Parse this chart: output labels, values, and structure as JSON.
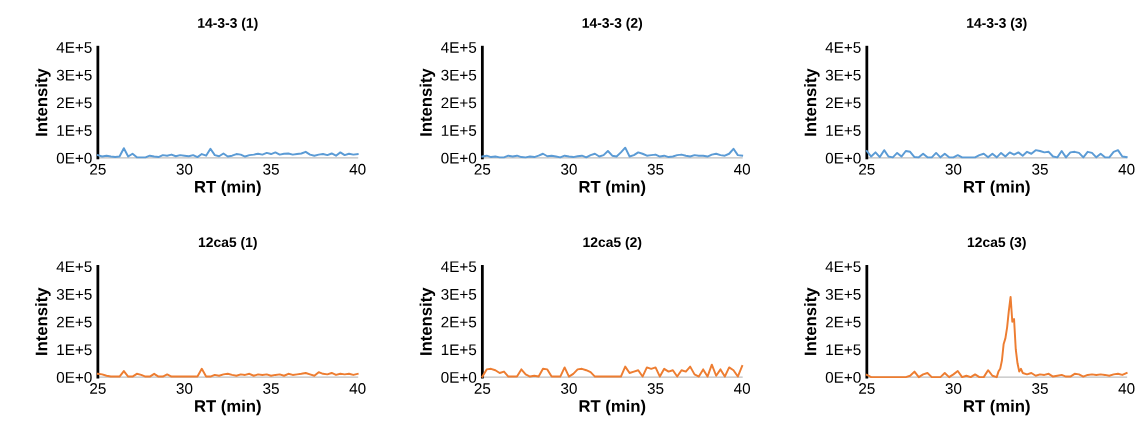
{
  "chart_data": [
    {
      "type": "line",
      "title": "14-3-3 (1)",
      "xlabel": "RT (min)",
      "ylabel": "Intensity",
      "xlim": [
        25,
        40
      ],
      "ylim": [
        0,
        400000
      ],
      "xticks": [
        25,
        30,
        35,
        40
      ],
      "yticks": [
        {
          "value": 0,
          "label": "0E+0"
        },
        {
          "value": 100000,
          "label": "1E+5"
        },
        {
          "value": 200000,
          "label": "2E+5"
        },
        {
          "value": 300000,
          "label": "3E+5"
        },
        {
          "value": 400000,
          "label": "4E+5"
        }
      ],
      "grid": false,
      "x": [
        25,
        25.25,
        25.5,
        25.75,
        26,
        26.25,
        26.5,
        26.75,
        27,
        27.25,
        27.5,
        27.75,
        28,
        28.25,
        28.5,
        28.75,
        29,
        29.25,
        29.5,
        29.75,
        30,
        30.25,
        30.5,
        30.75,
        31,
        31.25,
        31.5,
        31.75,
        32,
        32.25,
        32.5,
        32.75,
        33,
        33.25,
        33.5,
        33.75,
        34,
        34.25,
        34.5,
        34.75,
        35,
        35.25,
        35.5,
        35.75,
        36,
        36.25,
        36.5,
        36.75,
        37,
        37.25,
        37.5,
        37.75,
        38,
        38.25,
        38.5,
        38.75,
        39,
        39.25,
        39.5,
        39.75,
        40
      ],
      "series": [
        {
          "color": "#5b9bd5",
          "values": [
            10000,
            5000,
            8000,
            5000,
            3000,
            5000,
            35000,
            5000,
            15000,
            2000,
            2000,
            2000,
            8000,
            5000,
            3000,
            10000,
            8000,
            12000,
            6000,
            10000,
            8000,
            6000,
            10000,
            3000,
            14000,
            8000,
            33000,
            10000,
            6000,
            16000,
            5000,
            8000,
            14000,
            12000,
            5000,
            10000,
            12000,
            15000,
            12000,
            18000,
            14000,
            20000,
            12000,
            15000,
            16000,
            12000,
            14000,
            16000,
            22000,
            12000,
            8000,
            12000,
            14000,
            10000,
            16000,
            8000,
            20000,
            10000,
            15000,
            12000,
            14000
          ]
        }
      ]
    },
    {
      "type": "line",
      "title": "14-3-3 (2)",
      "xlabel": "RT (min)",
      "ylabel": "Intensity",
      "xlim": [
        25,
        40
      ],
      "ylim": [
        0,
        400000
      ],
      "xticks": [
        25,
        30,
        35,
        40
      ],
      "yticks": [
        {
          "value": 0,
          "label": "0E+0"
        },
        {
          "value": 100000,
          "label": "1E+5"
        },
        {
          "value": 200000,
          "label": "2E+5"
        },
        {
          "value": 300000,
          "label": "3E+5"
        },
        {
          "value": 400000,
          "label": "4E+5"
        }
      ],
      "grid": false,
      "x": [
        25,
        25.25,
        25.5,
        25.75,
        26,
        26.25,
        26.5,
        26.75,
        27,
        27.25,
        27.5,
        27.75,
        28,
        28.25,
        28.5,
        28.75,
        29,
        29.25,
        29.5,
        29.75,
        30,
        30.25,
        30.5,
        30.75,
        31,
        31.25,
        31.5,
        31.75,
        32,
        32.25,
        32.5,
        32.75,
        33,
        33.25,
        33.5,
        33.75,
        34,
        34.25,
        34.5,
        34.75,
        35,
        35.25,
        35.5,
        35.75,
        36,
        36.25,
        36.5,
        36.75,
        37,
        37.25,
        37.5,
        37.75,
        38,
        38.25,
        38.5,
        38.75,
        39,
        39.25,
        39.5,
        39.75,
        40
      ],
      "series": [
        {
          "color": "#5b9bd5",
          "values": [
            5000,
            8000,
            3000,
            5000,
            2000,
            2000,
            8000,
            5000,
            8000,
            3000,
            2000,
            5000,
            3000,
            8000,
            15000,
            6000,
            8000,
            5000,
            2000,
            8000,
            5000,
            3000,
            6000,
            8000,
            2000,
            10000,
            15000,
            5000,
            10000,
            25000,
            8000,
            5000,
            20000,
            37000,
            5000,
            10000,
            20000,
            15000,
            8000,
            10000,
            12000,
            5000,
            8000,
            3000,
            5000,
            10000,
            12000,
            8000,
            5000,
            10000,
            8000,
            8000,
            5000,
            12000,
            15000,
            10000,
            8000,
            15000,
            33000,
            10000,
            8000
          ]
        }
      ]
    },
    {
      "type": "line",
      "title": "14-3-3 (3)",
      "xlabel": "RT (min)",
      "ylabel": "Intensity",
      "xlim": [
        25,
        40
      ],
      "ylim": [
        0,
        400000
      ],
      "xticks": [
        25,
        30,
        35,
        40
      ],
      "yticks": [
        {
          "value": 0,
          "label": "0E+0"
        },
        {
          "value": 100000,
          "label": "1E+5"
        },
        {
          "value": 200000,
          "label": "2E+5"
        },
        {
          "value": 300000,
          "label": "3E+5"
        },
        {
          "value": 400000,
          "label": "4E+5"
        }
      ],
      "grid": false,
      "x": [
        25,
        25.25,
        25.5,
        25.75,
        26,
        26.25,
        26.5,
        26.75,
        27,
        27.25,
        27.5,
        27.75,
        28,
        28.25,
        28.5,
        28.75,
        29,
        29.25,
        29.5,
        29.75,
        30,
        30.25,
        30.5,
        30.75,
        31,
        31.25,
        31.5,
        31.75,
        32,
        32.25,
        32.5,
        32.75,
        33,
        33.25,
        33.5,
        33.75,
        34,
        34.25,
        34.5,
        34.75,
        35,
        35.25,
        35.5,
        35.75,
        36,
        36.25,
        36.5,
        36.75,
        37,
        37.25,
        37.5,
        37.75,
        38,
        38.25,
        38.5,
        38.75,
        39,
        39.25,
        39.5,
        39.75,
        40
      ],
      "series": [
        {
          "color": "#5b9bd5",
          "values": [
            25000,
            5000,
            20000,
            3000,
            28000,
            5000,
            2000,
            18000,
            5000,
            25000,
            22000,
            3000,
            2000,
            15000,
            2000,
            2000,
            18000,
            2000,
            15000,
            2000,
            2000,
            10000,
            2000,
            2000,
            2000,
            2000,
            10000,
            15000,
            2000,
            15000,
            2000,
            18000,
            5000,
            20000,
            12000,
            20000,
            8000,
            22000,
            15000,
            28000,
            25000,
            20000,
            22000,
            5000,
            2000,
            25000,
            2000,
            20000,
            22000,
            18000,
            2000,
            22000,
            18000,
            2000,
            15000,
            2000,
            2000,
            22000,
            28000,
            5000,
            3000
          ]
        }
      ]
    },
    {
      "type": "line",
      "title": "12ca5 (1)",
      "xlabel": "RT (min)",
      "ylabel": "Intensity",
      "xlim": [
        25,
        40
      ],
      "ylim": [
        0,
        400000
      ],
      "xticks": [
        25,
        30,
        35,
        40
      ],
      "yticks": [
        {
          "value": 0,
          "label": "0E+0"
        },
        {
          "value": 100000,
          "label": "1E+5"
        },
        {
          "value": 200000,
          "label": "2E+5"
        },
        {
          "value": 300000,
          "label": "3E+5"
        },
        {
          "value": 400000,
          "label": "4E+5"
        }
      ],
      "grid": false,
      "x": [
        25,
        25.25,
        25.5,
        25.75,
        26,
        26.25,
        26.5,
        26.75,
        27,
        27.25,
        27.5,
        27.75,
        28,
        28.25,
        28.5,
        28.75,
        29,
        29.25,
        29.5,
        29.75,
        30,
        30.25,
        30.5,
        30.75,
        31,
        31.25,
        31.5,
        31.75,
        32,
        32.25,
        32.5,
        32.75,
        33,
        33.25,
        33.5,
        33.75,
        34,
        34.25,
        34.5,
        34.75,
        35,
        35.25,
        35.5,
        35.75,
        36,
        36.25,
        36.5,
        36.75,
        37,
        37.25,
        37.5,
        37.75,
        38,
        38.25,
        38.5,
        38.75,
        39,
        39.25,
        39.5,
        39.75,
        40
      ],
      "series": [
        {
          "color": "#ed7d31",
          "values": [
            12000,
            10000,
            5000,
            2000,
            2000,
            2000,
            22000,
            2000,
            2000,
            12000,
            8000,
            2000,
            2000,
            12000,
            2000,
            2000,
            10000,
            2000,
            2000,
            2000,
            2000,
            2000,
            2000,
            2000,
            30000,
            2000,
            2000,
            8000,
            5000,
            10000,
            12000,
            8000,
            5000,
            10000,
            8000,
            12000,
            5000,
            10000,
            8000,
            10000,
            5000,
            8000,
            10000,
            5000,
            12000,
            8000,
            10000,
            12000,
            15000,
            10000,
            5000,
            18000,
            12000,
            10000,
            15000,
            8000,
            12000,
            10000,
            12000,
            8000,
            12000
          ]
        }
      ]
    },
    {
      "type": "line",
      "title": "12ca5 (2)",
      "xlabel": "RT (min)",
      "ylabel": "Intensity",
      "xlim": [
        25,
        40
      ],
      "ylim": [
        0,
        400000
      ],
      "xticks": [
        25,
        30,
        35,
        40
      ],
      "yticks": [
        {
          "value": 0,
          "label": "0E+0"
        },
        {
          "value": 100000,
          "label": "1E+5"
        },
        {
          "value": 200000,
          "label": "2E+5"
        },
        {
          "value": 300000,
          "label": "3E+5"
        },
        {
          "value": 400000,
          "label": "4E+5"
        }
      ],
      "grid": false,
      "x": [
        25,
        25.25,
        25.5,
        25.75,
        26,
        26.25,
        26.5,
        26.75,
        27,
        27.25,
        27.5,
        27.75,
        28,
        28.25,
        28.5,
        28.75,
        29,
        29.25,
        29.5,
        29.75,
        30,
        30.25,
        30.5,
        30.75,
        31,
        31.25,
        31.5,
        31.75,
        32,
        32.25,
        32.5,
        32.75,
        33,
        33.25,
        33.5,
        33.75,
        34,
        34.25,
        34.5,
        34.75,
        35,
        35.25,
        35.5,
        35.75,
        36,
        36.25,
        36.5,
        36.75,
        37,
        37.25,
        37.5,
        37.75,
        38,
        38.25,
        38.5,
        38.75,
        39,
        39.25,
        39.5,
        39.75,
        40
      ],
      "series": [
        {
          "color": "#ed7d31",
          "values": [
            2000,
            28000,
            30000,
            25000,
            15000,
            20000,
            2000,
            2000,
            2000,
            28000,
            10000,
            2000,
            5000,
            2000,
            30000,
            28000,
            2000,
            2000,
            2000,
            35000,
            2000,
            12000,
            28000,
            30000,
            25000,
            18000,
            2000,
            2000,
            2000,
            2000,
            2000,
            2000,
            2000,
            38000,
            15000,
            20000,
            25000,
            2000,
            35000,
            30000,
            35000,
            2000,
            30000,
            20000,
            25000,
            2000,
            25000,
            20000,
            38000,
            10000,
            2000,
            28000,
            2000,
            45000,
            5000,
            28000,
            2000,
            35000,
            25000,
            2000,
            40000
          ]
        }
      ]
    },
    {
      "type": "line",
      "title": "12ca5 (3)",
      "xlabel": "RT (min)",
      "ylabel": "Intensity",
      "xlim": [
        25,
        40
      ],
      "ylim": [
        0,
        400000
      ],
      "xticks": [
        25,
        30,
        35,
        40
      ],
      "yticks": [
        {
          "value": 0,
          "label": "0E+0"
        },
        {
          "value": 100000,
          "label": "1E+5"
        },
        {
          "value": 200000,
          "label": "2E+5"
        },
        {
          "value": 300000,
          "label": "3E+5"
        },
        {
          "value": 400000,
          "label": "4E+5"
        }
      ],
      "grid": false,
      "x": [
        25,
        25.25,
        25.5,
        25.75,
        26,
        26.25,
        26.5,
        26.75,
        27,
        27.25,
        27.5,
        27.75,
        28,
        28.25,
        28.5,
        28.75,
        29,
        29.25,
        29.5,
        29.75,
        30,
        30.25,
        30.5,
        30.75,
        31,
        31.25,
        31.5,
        31.75,
        32,
        32.25,
        32.5,
        32.6,
        32.7,
        32.8,
        32.9,
        33.0,
        33.1,
        33.2,
        33.3,
        33.4,
        33.5,
        33.6,
        33.7,
        33.8,
        33.9,
        34.0,
        34.25,
        34.5,
        34.75,
        35,
        35.25,
        35.5,
        35.75,
        36,
        36.25,
        36.5,
        36.75,
        37,
        37.25,
        37.5,
        37.75,
        38,
        38.25,
        38.5,
        38.75,
        39,
        39.25,
        39.5,
        39.75,
        40
      ],
      "series": [
        {
          "color": "#ed7d31",
          "values": [
            8000,
            0,
            0,
            0,
            0,
            0,
            0,
            0,
            0,
            0,
            5000,
            20000,
            0,
            10000,
            15000,
            0,
            0,
            0,
            15000,
            0,
            10000,
            22000,
            0,
            5000,
            0,
            10000,
            0,
            0,
            25000,
            5000,
            0,
            20000,
            30000,
            60000,
            120000,
            140000,
            180000,
            240000,
            290000,
            200000,
            210000,
            100000,
            50000,
            20000,
            30000,
            15000,
            10000,
            15000,
            5000,
            10000,
            8000,
            12000,
            2000,
            5000,
            8000,
            2000,
            2000,
            12000,
            10000,
            2000,
            8000,
            10000,
            8000,
            10000,
            8000,
            5000,
            10000,
            12000,
            8000,
            15000
          ]
        }
      ]
    }
  ]
}
